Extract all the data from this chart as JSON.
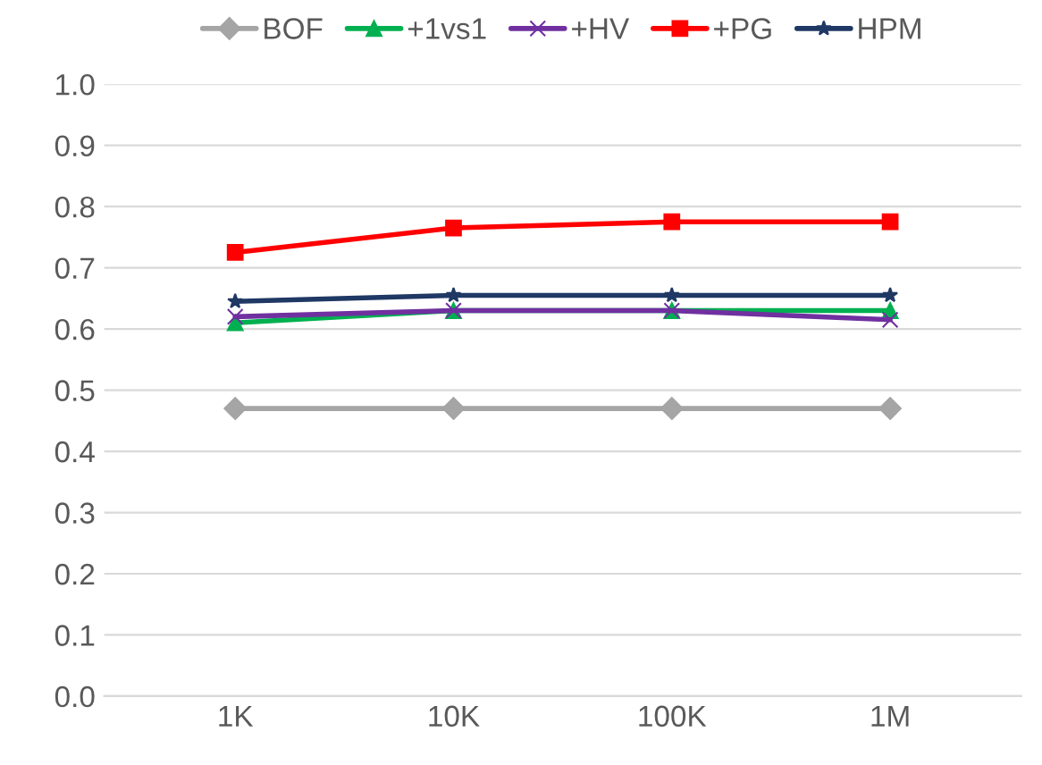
{
  "chart_data": {
    "type": "line",
    "categories": [
      "1K",
      "10K",
      "100K",
      "1M"
    ],
    "series": [
      {
        "name": "BOF",
        "color": "#a5a5a5",
        "marker": "diamond",
        "values": [
          0.47,
          0.47,
          0.47,
          0.47
        ]
      },
      {
        "name": "+1vs1",
        "color": "#00b050",
        "marker": "triangle",
        "values": [
          0.61,
          0.63,
          0.63,
          0.63
        ]
      },
      {
        "name": "+HV",
        "color": "#7030a0",
        "marker": "cross",
        "values": [
          0.62,
          0.63,
          0.63,
          0.615
        ]
      },
      {
        "name": "+PG",
        "color": "#ff0000",
        "marker": "square",
        "values": [
          0.725,
          0.765,
          0.775,
          0.775
        ]
      },
      {
        "name": "HPM",
        "color": "#1f3864",
        "marker": "star",
        "values": [
          0.645,
          0.655,
          0.655,
          0.655
        ]
      }
    ],
    "ylim": [
      0,
      1
    ],
    "yticks": [
      {
        "value": 0,
        "label": "0.0"
      },
      {
        "value": 0.1,
        "label": "0.1"
      },
      {
        "value": 0.2,
        "label": "0.2"
      },
      {
        "value": 0.3,
        "label": "0.3"
      },
      {
        "value": 0.4,
        "label": "0.4"
      },
      {
        "value": 0.5,
        "label": "0.5"
      },
      {
        "value": 0.6,
        "label": "0.6"
      },
      {
        "value": 0.7,
        "label": "0.7"
      },
      {
        "value": 0.8,
        "label": "0.8"
      },
      {
        "value": 0.9,
        "label": "0.9"
      },
      {
        "value": 1,
        "label": "1.0"
      }
    ],
    "grid": "y",
    "legend": "top"
  }
}
